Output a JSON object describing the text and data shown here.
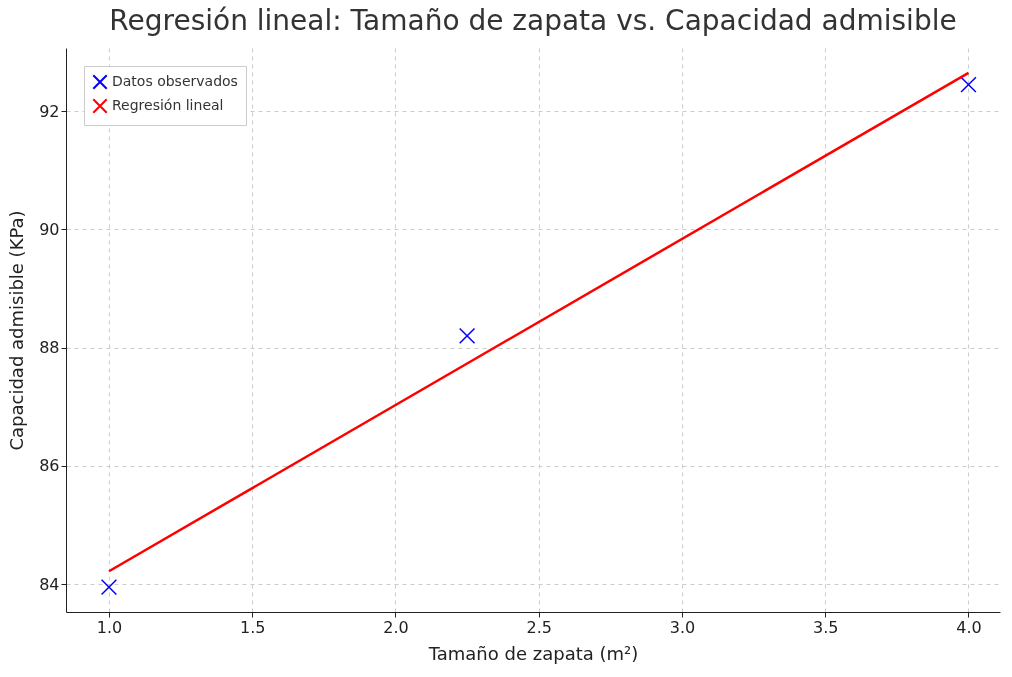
{
  "chart_data": {
    "type": "scatter",
    "title": "Regresión lineal: Tamaño de zapata vs. Capacidad admisible",
    "xlabel": "Tamaño de zapata (m²)",
    "ylabel": "Capacidad admisible (KPa)",
    "series": [
      {
        "name": "Datos observados",
        "color": "#0000ff",
        "marker": "cross",
        "x": [
          1.0,
          2.25,
          4.0
        ],
        "values": [
          83.95,
          88.2,
          92.45
        ]
      },
      {
        "name": "Regresión lineal",
        "type": "line",
        "color": "#ff0000",
        "line_style": "solid",
        "x": [
          1.0,
          4.0
        ],
        "values": [
          84.22,
          92.65
        ]
      }
    ],
    "xlim": [
      0.85,
      4.11
    ],
    "ylim": [
      83.53,
      93.07
    ],
    "xticks": [
      {
        "value": 1,
        "label": "1.0"
      },
      {
        "value": 1.5,
        "label": "1.5"
      },
      {
        "value": 2,
        "label": "2.0"
      },
      {
        "value": 2.5,
        "label": "2.5"
      },
      {
        "value": 3,
        "label": "3.0"
      },
      {
        "value": 3.5,
        "label": "3.5"
      },
      {
        "value": 4,
        "label": "4.0"
      }
    ],
    "yticks": [
      84,
      86,
      88,
      90,
      92
    ],
    "grid": true,
    "legend": "top left"
  }
}
